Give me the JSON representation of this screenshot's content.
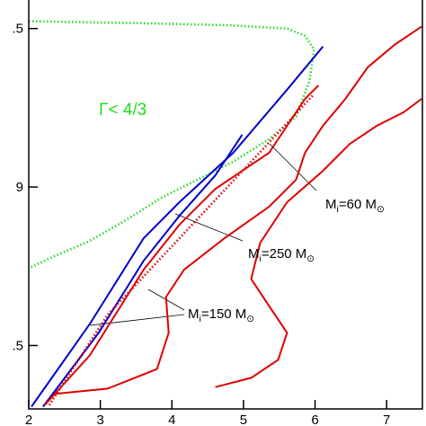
{
  "chart_data": {
    "type": "line",
    "xlim": [
      2,
      7.5
    ],
    "ylim": [
      8.3,
      9.59
    ],
    "xticks": [
      2,
      3,
      4,
      5,
      6,
      7
    ],
    "yticks": [
      {
        "value": 9.5,
        "label": ".5"
      },
      9,
      {
        "value": 8.5,
        "label": ".5"
      }
    ],
    "series": [
      {
        "color": "#22dd22",
        "style": "dotted",
        "x": [
          2.0,
          3.479,
          4.732,
          5.609,
          5.86,
          5.985,
          5.922,
          5.734,
          5.358,
          4.857,
          4.356,
          3.855,
          3.353,
          2.852,
          2.351,
          2.0
        ],
        "values": [
          9.523,
          9.517,
          9.511,
          9.5,
          9.477,
          9.435,
          9.335,
          9.222,
          9.151,
          9.08,
          9.023,
          8.966,
          8.895,
          8.83,
          8.781,
          8.744
        ]
      },
      {
        "color": "#0000cc",
        "style": "solid",
        "x": [
          2.038,
          2.852,
          3.604,
          4.105,
          4.857,
          5.609,
          6.11
        ],
        "values": [
          8.307,
          8.568,
          8.838,
          8.952,
          9.108,
          9.307,
          9.443
        ]
      },
      {
        "color": "#0000cc",
        "style": "solid",
        "x": [
          2.2,
          2.977,
          3.604,
          4.105,
          4.607,
          4.982
        ],
        "values": [
          8.307,
          8.54,
          8.767,
          8.909,
          9.037,
          9.165
        ]
      },
      {
        "color": "#dd0000",
        "style": "dotted",
        "x": [
          2.288,
          3.103,
          4.105,
          5.108,
          5.985
        ],
        "values": [
          8.312,
          8.597,
          8.838,
          9.08,
          9.293
        ]
      },
      {
        "color": "#dd0000",
        "style": "solid",
        "x": [
          2.226,
          2.852,
          3.604,
          4.105,
          4.607,
          4.982,
          5.358,
          5.609,
          5.86,
          6.048
        ],
        "values": [
          8.313,
          8.469,
          8.739,
          8.881,
          8.994,
          9.051,
          9.108,
          9.193,
          9.278,
          9.321
        ]
      },
      {
        "color": "#dd0000",
        "style": "solid",
        "x": [
          2.351,
          3.103,
          3.792,
          3.955,
          3.917,
          4.168,
          4.732,
          5.358,
          5.734,
          5.86,
          6.11,
          6.424,
          6.737,
          7.113,
          7.489
        ],
        "values": [
          8.347,
          8.364,
          8.426,
          8.54,
          8.653,
          8.739,
          8.838,
          8.938,
          9.023,
          9.108,
          9.193,
          9.278,
          9.378,
          9.449,
          9.506
        ]
      },
      {
        "color": "#dd0000",
        "style": "solid",
        "x": [
          4.607,
          5.108,
          5.484,
          5.609,
          5.358,
          5.108,
          5.233,
          5.609,
          6.11,
          6.486,
          6.862,
          7.238,
          7.489
        ],
        "values": [
          8.369,
          8.398,
          8.455,
          8.54,
          8.625,
          8.71,
          8.824,
          8.952,
          9.051,
          9.136,
          9.193,
          9.236,
          9.278
        ]
      }
    ],
    "annotations": [
      {
        "parts": [
          "Γ< 4/3"
        ],
        "color": "#22dd22"
      },
      {
        "parts": [
          "M",
          "i",
          "=60 M",
          "⊙"
        ],
        "color": "#000000"
      },
      {
        "parts": [
          "M",
          "i",
          "=250 M",
          "⊙"
        ],
        "color": "#000000"
      },
      {
        "parts": [
          "M",
          "i",
          "=150 M",
          "⊙"
        ],
        "color": "#000000"
      }
    ]
  }
}
